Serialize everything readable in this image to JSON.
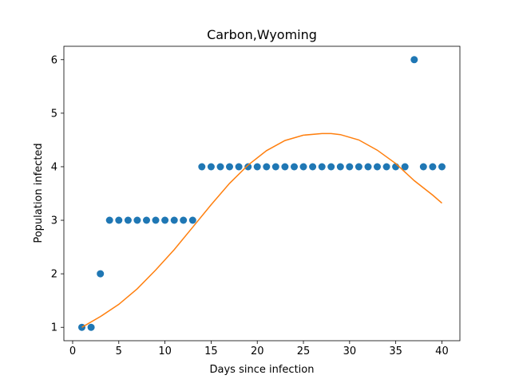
{
  "chart_data": {
    "type": "scatter",
    "title": "Carbon,Wyoming",
    "xlabel": "Days since infection",
    "ylabel": "Population infected",
    "xlim": [
      -0.95,
      41.95
    ],
    "ylim": [
      0.75,
      6.25
    ],
    "xticks": [
      0,
      5,
      10,
      15,
      20,
      25,
      30,
      35,
      40
    ],
    "yticks": [
      1,
      2,
      3,
      4,
      5,
      6
    ],
    "grid": false,
    "series": [
      {
        "kind": "scatter",
        "color": "#1f77b4",
        "x": [
          1,
          2,
          3,
          4,
          5,
          6,
          7,
          8,
          9,
          10,
          11,
          12,
          13,
          14,
          15,
          16,
          17,
          18,
          19,
          20,
          21,
          22,
          23,
          24,
          25,
          26,
          27,
          28,
          29,
          30,
          31,
          32,
          33,
          34,
          35,
          36,
          37,
          38,
          39,
          40
        ],
        "y": [
          1,
          1,
          2,
          3,
          3,
          3,
          3,
          3,
          3,
          3,
          3,
          3,
          3,
          4,
          4,
          4,
          4,
          4,
          4,
          4,
          4,
          4,
          4,
          4,
          4,
          4,
          4,
          4,
          4,
          4,
          4,
          4,
          4,
          4,
          4,
          4,
          6,
          4,
          4,
          4
        ]
      },
      {
        "kind": "line",
        "color": "#ff7f0e",
        "x": [
          1,
          3,
          5,
          7,
          9,
          11,
          13,
          15,
          17,
          19,
          21,
          23,
          25,
          27,
          28,
          29,
          31,
          33,
          35,
          37,
          39,
          40
        ],
        "y": [
          1.0,
          1.2,
          1.43,
          1.72,
          2.07,
          2.45,
          2.87,
          3.29,
          3.69,
          4.03,
          4.3,
          4.49,
          4.59,
          4.62,
          4.62,
          4.6,
          4.5,
          4.31,
          4.06,
          3.74,
          3.47,
          3.32
        ]
      }
    ]
  }
}
